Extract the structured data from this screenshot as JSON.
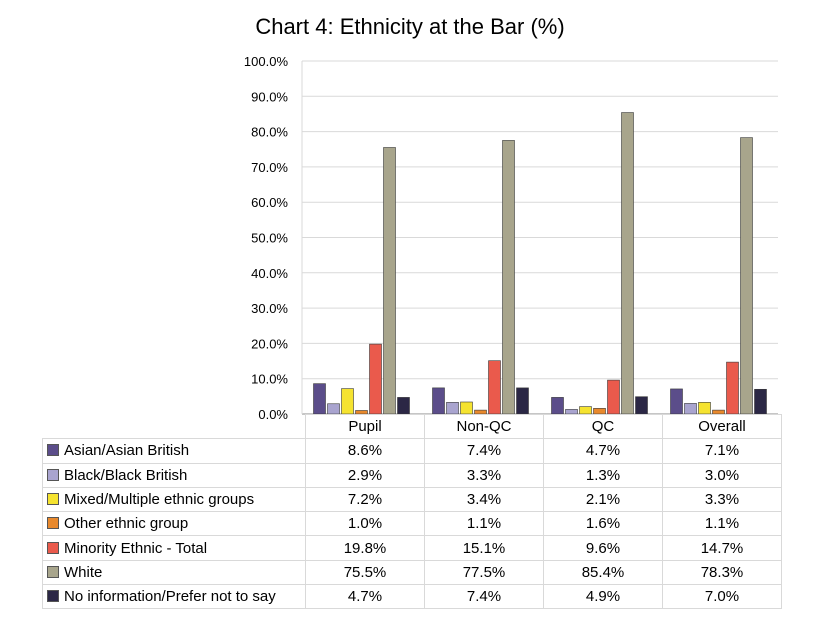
{
  "chart_data": {
    "type": "bar",
    "title": "Chart 4: Ethnicity at the Bar (%)",
    "categories": [
      "Pupil",
      "Non-QC",
      "QC",
      "Overall"
    ],
    "ylim": [
      0,
      100
    ],
    "yticks": [
      "0.0%",
      "10.0%",
      "20.0%",
      "30.0%",
      "40.0%",
      "50.0%",
      "60.0%",
      "70.0%",
      "80.0%",
      "90.0%",
      "100.0%"
    ],
    "grid": true,
    "legend": "data table below chart",
    "series": [
      {
        "name": "Asian/Asian British",
        "color": "#5b4d8a",
        "values": [
          8.6,
          7.4,
          4.7,
          7.1
        ],
        "labels": [
          "8.6%",
          "7.4%",
          "4.7%",
          "7.1%"
        ]
      },
      {
        "name": "Black/Black British",
        "color": "#a9a4cf",
        "values": [
          2.9,
          3.3,
          1.3,
          3.0
        ],
        "labels": [
          "2.9%",
          "3.3%",
          "1.3%",
          "3.0%"
        ]
      },
      {
        "name": "Mixed/Multiple ethnic groups",
        "color": "#f5e330",
        "values": [
          7.2,
          3.4,
          2.1,
          3.3
        ],
        "labels": [
          "7.2%",
          "3.4%",
          "2.1%",
          "3.3%"
        ]
      },
      {
        "name": "Other ethnic group",
        "color": "#e8892d",
        "values": [
          1.0,
          1.1,
          1.6,
          1.1
        ],
        "labels": [
          "1.0%",
          "1.1%",
          "1.6%",
          "1.1%"
        ]
      },
      {
        "name": "Minority Ethnic - Total",
        "color": "#ea5a4c",
        "values": [
          19.8,
          15.1,
          9.6,
          14.7
        ],
        "labels": [
          "19.8%",
          "15.1%",
          "9.6%",
          "14.7%"
        ]
      },
      {
        "name": "White",
        "color": "#a8a58c",
        "values": [
          75.5,
          77.5,
          85.4,
          78.3
        ],
        "labels": [
          "75.5%",
          "77.5%",
          "85.4%",
          "78.3%"
        ]
      },
      {
        "name": "No information/Prefer not to say",
        "color": "#2b2745",
        "values": [
          4.7,
          7.4,
          4.9,
          7.0
        ],
        "labels": [
          "4.7%",
          "7.4%",
          "4.9%",
          "7.0%"
        ]
      }
    ]
  }
}
